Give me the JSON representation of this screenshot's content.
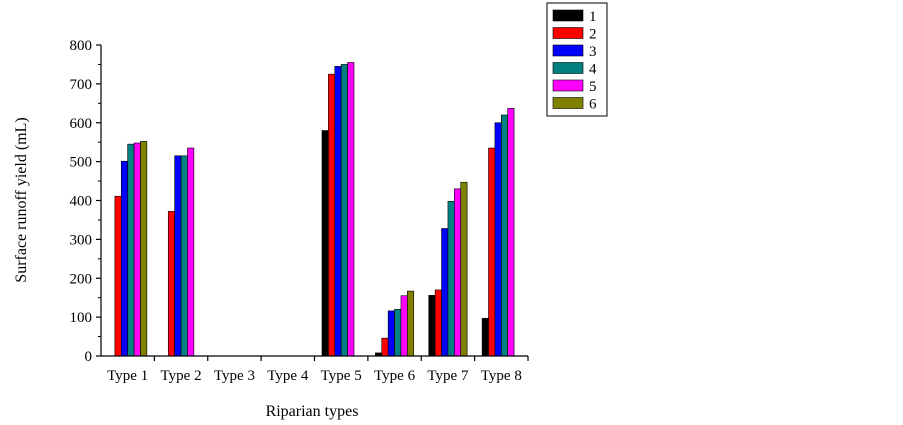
{
  "chart_data": {
    "type": "bar",
    "xlabel": "Riparian types",
    "ylabel": "Surface runoff yield (mL)",
    "ylim": [
      0,
      800
    ],
    "yticks": [
      "0",
      "100",
      "200",
      "300",
      "400",
      "500",
      "600",
      "700",
      "800"
    ],
    "categories": [
      "Type 1",
      "Type 2",
      "Type 3",
      "Type 4",
      "Type 5",
      "Type 6",
      "Type 7",
      "Type 8"
    ],
    "grid": false,
    "legend_position": "top-right outside plot",
    "series": [
      {
        "name": "1",
        "color": "#000000",
        "values": [
          0,
          0,
          0,
          0,
          580,
          8,
          156,
          97
        ]
      },
      {
        "name": "2",
        "color": "#ff0000",
        "values": [
          411,
          372,
          0,
          0,
          725,
          46,
          170,
          535
        ]
      },
      {
        "name": "3",
        "color": "#0000ff",
        "values": [
          501,
          515,
          0,
          0,
          745,
          116,
          328,
          600
        ]
      },
      {
        "name": "4",
        "color": "#008080",
        "values": [
          545,
          515,
          0,
          0,
          750,
          120,
          398,
          620
        ]
      },
      {
        "name": "5",
        "color": "#ff00ff",
        "values": [
          548,
          535,
          0,
          0,
          755,
          155,
          430,
          637
        ]
      },
      {
        "name": "6",
        "color": "#808000",
        "values": [
          552,
          0,
          0,
          0,
          0,
          167,
          447,
          0
        ]
      }
    ]
  }
}
